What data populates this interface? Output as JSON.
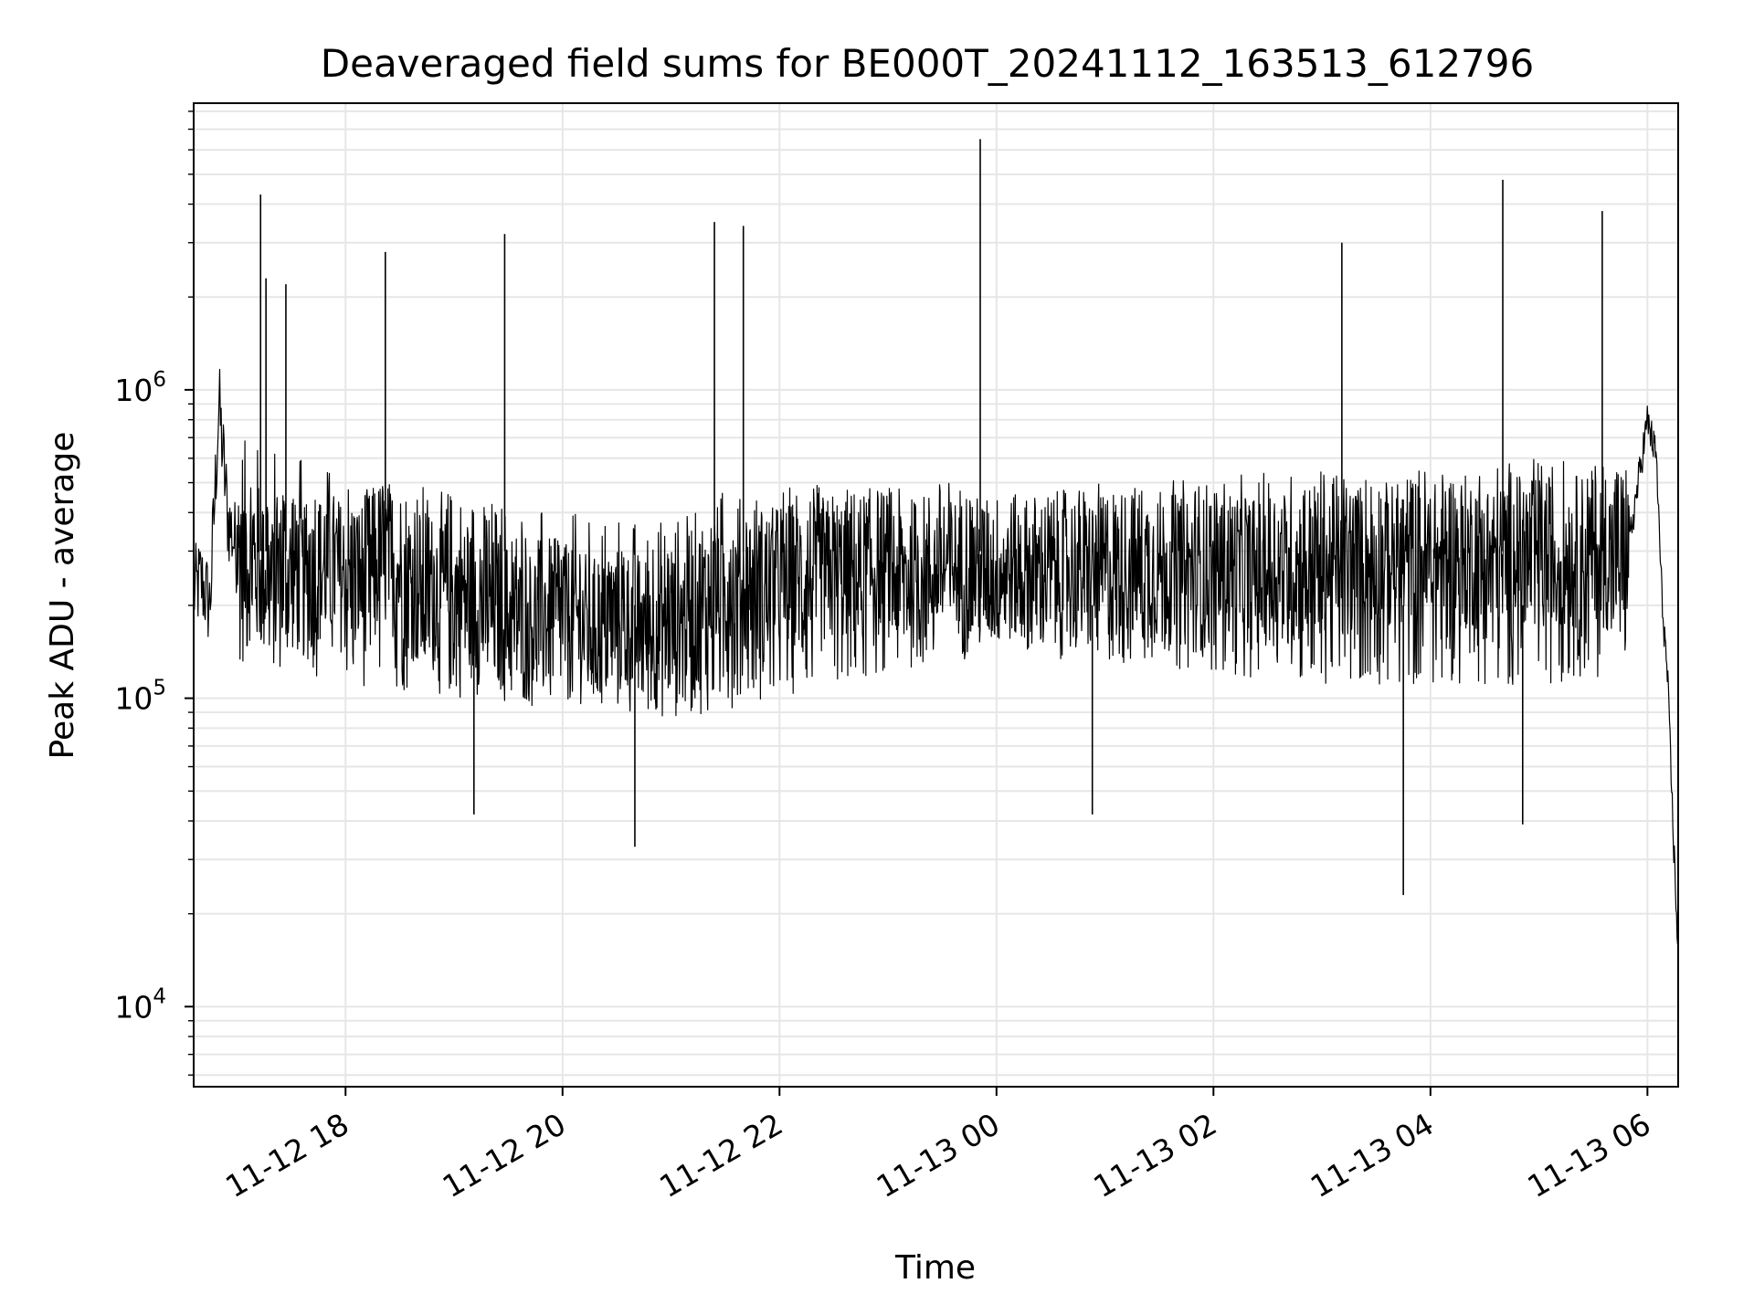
{
  "chart_data": {
    "type": "line",
    "title": "Deaveraged field sums for BE000T_20241112_163513_612796",
    "xlabel": "Time",
    "ylabel": "Peak ADU - average",
    "yscale": "log",
    "ylim": [
      5500,
      8500000
    ],
    "xlim": [
      "11-12 16:36",
      "11-13 06:17"
    ],
    "grid": true,
    "line_color": "#000000",
    "x_ticks": [
      "11-12 18",
      "11-12 20",
      "11-12 22",
      "11-13 00",
      "11-13 02",
      "11-13 04",
      "11-13 06"
    ],
    "y_ticks": [
      {
        "base": "10",
        "exp": "4",
        "value": 10000
      },
      {
        "base": "10",
        "exp": "5",
        "value": 100000
      },
      {
        "base": "10",
        "exp": "6",
        "value": 1000000
      }
    ],
    "series": [
      {
        "x": [
          "11-12 16:36",
          "11-12 16:40",
          "11-12 16:45",
          "11-12 16:50",
          "11-12 16:55",
          "11-12 17:00",
          "11-12 17:10",
          "11-12 17:20",
          "11-12 17:30",
          "11-12 17:40",
          "11-12 17:50",
          "11-12 18:00",
          "11-12 18:10",
          "11-12 18:20",
          "11-12 18:30",
          "11-12 18:40",
          "11-12 18:50",
          "11-12 19:00",
          "11-12 19:10",
          "11-12 19:20",
          "11-12 19:30",
          "11-12 19:40",
          "11-12 19:50",
          "11-12 20:00",
          "11-12 20:10",
          "11-12 20:20",
          "11-12 20:30",
          "11-12 20:40",
          "11-12 20:50",
          "11-12 21:00",
          "11-12 21:10",
          "11-12 21:20",
          "11-12 21:30",
          "11-12 21:40",
          "11-12 21:50",
          "11-12 22:00",
          "11-12 22:10",
          "11-12 22:20",
          "11-12 22:30",
          "11-12 22:40",
          "11-12 22:50",
          "11-12 23:00",
          "11-12 23:10",
          "11-12 23:20",
          "11-12 23:30",
          "11-12 23:40",
          "11-12 23:50",
          "11-13 00:00",
          "11-13 00:10",
          "11-13 00:20",
          "11-13 00:30",
          "11-13 00:40",
          "11-13 00:50",
          "11-13 01:00",
          "11-13 01:10",
          "11-13 01:20",
          "11-13 01:30",
          "11-13 01:40",
          "11-13 01:50",
          "11-13 02:00",
          "11-13 02:10",
          "11-13 02:20",
          "11-13 02:30",
          "11-13 02:40",
          "11-13 02:50",
          "11-13 03:00",
          "11-13 03:10",
          "11-13 03:20",
          "11-13 03:30",
          "11-13 03:40",
          "11-13 03:50",
          "11-13 04:00",
          "11-13 04:10",
          "11-13 04:20",
          "11-13 04:30",
          "11-13 04:40",
          "11-13 04:50",
          "11-13 05:00",
          "11-13 05:10",
          "11-13 05:20",
          "11-13 05:30",
          "11-13 05:40",
          "11-13 05:50",
          "11-13 06:00",
          "11-13 06:05",
          "11-13 06:08",
          "11-13 06:11",
          "11-13 06:14",
          "11-13 06:17"
        ],
        "y": [
          220000,
          240000,
          200000,
          900000,
          380000,
          300000,
          260000,
          220000,
          250000,
          230000,
          280000,
          240000,
          250000,
          300000,
          270000,
          220000,
          230000,
          210000,
          200000,
          190000,
          180000,
          170000,
          190000,
          180000,
          170000,
          160000,
          180000,
          170000,
          160000,
          170000,
          190000,
          210000,
          280000,
          240000,
          230000,
          240000,
          250000,
          240000,
          260000,
          250000,
          270000,
          280000,
          250000,
          260000,
          290000,
          280000,
          270000,
          260000,
          270000,
          250000,
          260000,
          270000,
          250000,
          260000,
          270000,
          280000,
          270000,
          260000,
          250000,
          260000,
          270000,
          250000,
          260000,
          270000,
          280000,
          290000,
          270000,
          280000,
          290000,
          280000,
          300000,
          280000,
          290000,
          300000,
          290000,
          280000,
          300000,
          310000,
          290000,
          300000,
          310000,
          290000,
          320000,
          800000,
          600000,
          210000,
          120000,
          40000,
          15000
        ]
      }
    ],
    "envelope": {
      "x": [
        "11-12 17:00",
        "11-12 18:00",
        "11-12 19:00",
        "11-12 20:00",
        "11-12 21:00",
        "11-12 22:00",
        "11-12 23:00",
        "11-13 00:00",
        "11-13 01:00",
        "11-13 02:00",
        "11-13 03:00",
        "11-13 04:00",
        "11-13 05:00",
        "11-13 05:50"
      ],
      "high": [
        700000,
        550000,
        480000,
        400000,
        380000,
        500000,
        480000,
        450000,
        500000,
        520000,
        560000,
        580000,
        600000,
        620000
      ],
      "low": [
        130000,
        110000,
        100000,
        90000,
        85000,
        100000,
        120000,
        140000,
        130000,
        120000,
        110000,
        110000,
        110000,
        120000
      ]
    },
    "spikes": {
      "x": [
        "11-12 17:13",
        "11-12 17:16",
        "11-12 17:27",
        "11-12 18:22",
        "11-12 19:28",
        "11-12 21:24",
        "11-12 21:40",
        "11-12 23:51",
        "11-13 03:11",
        "11-13 04:40",
        "11-13 05:35"
      ],
      "y": [
        4300000,
        2300000,
        2200000,
        2800000,
        3200000,
        3500000,
        3400000,
        6500000,
        3000000,
        4800000,
        3800000
      ]
    },
    "dips": {
      "x": [
        "11-12 19:11",
        "11-12 20:40",
        "11-13 00:53",
        "11-13 03:45",
        "11-13 04:51"
      ],
      "y": [
        42000,
        33000,
        42000,
        23000,
        39000
      ]
    }
  }
}
